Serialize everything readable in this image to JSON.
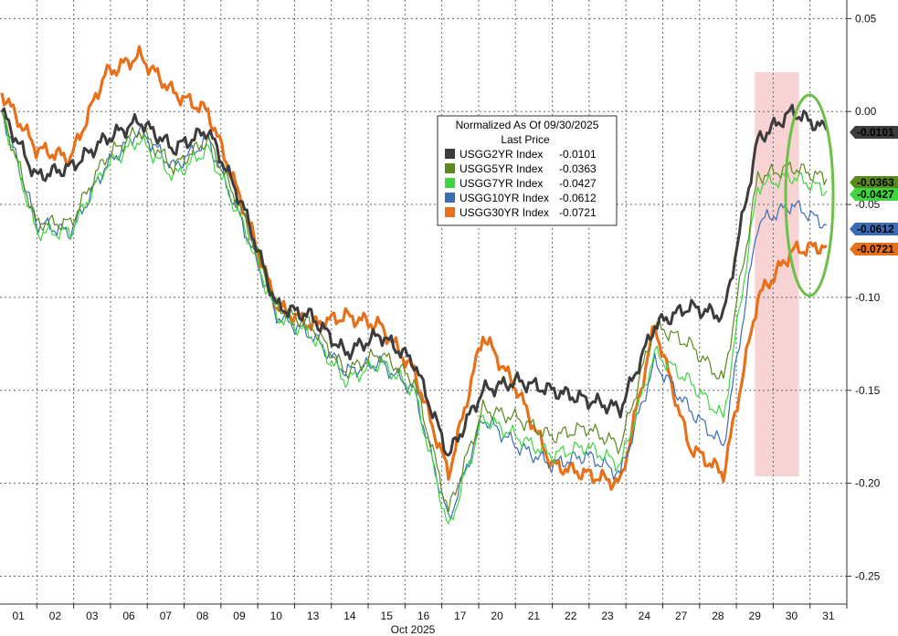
{
  "chart_data": {
    "type": "line",
    "legend": {
      "title_line1": "Normalized As Of 09/30/2025",
      "title_line2": "Last Price",
      "placement": "top-center"
    },
    "xlabel": "Oct 2025",
    "x_ticks": [
      "01",
      "02",
      "03",
      "06",
      "07",
      "08",
      "09",
      "10",
      "13",
      "14",
      "15",
      "16",
      "17",
      "20",
      "21",
      "22",
      "23",
      "24",
      "27",
      "28",
      "29",
      "30",
      "31"
    ],
    "y_ticks": [
      "0.05",
      "0.00",
      "-0.05",
      "-0.10",
      "-0.15",
      "-0.20",
      "-0.25"
    ],
    "ylim": [
      -0.265,
      0.06
    ],
    "grid": true,
    "highlight_band": {
      "from": "29",
      "to": "30",
      "color": "#f4c4c4"
    },
    "annotation": "green ellipse around 31",
    "series": [
      {
        "name": "USGG2YR Index",
        "last": "-0.0101",
        "color": "#3c3c3c",
        "values": [
          0.0,
          -0.035,
          -0.03,
          -0.015,
          -0.005,
          -0.02,
          -0.01,
          -0.05,
          -0.105,
          -0.11,
          -0.13,
          -0.12,
          -0.135,
          -0.185,
          -0.15,
          -0.145,
          -0.15,
          -0.155,
          -0.16,
          -0.115,
          -0.105,
          -0.11,
          -0.015,
          0.0,
          -0.01
        ]
      },
      {
        "name": "USGG5YR Index",
        "last": "-0.0363",
        "color": "#5a8a1e",
        "values": [
          0.0,
          -0.06,
          -0.06,
          -0.025,
          -0.01,
          -0.03,
          -0.015,
          -0.055,
          -0.105,
          -0.115,
          -0.14,
          -0.13,
          -0.145,
          -0.215,
          -0.16,
          -0.165,
          -0.175,
          -0.17,
          -0.18,
          -0.115,
          -0.125,
          -0.145,
          -0.035,
          -0.03,
          -0.0363
        ]
      },
      {
        "name": "USGG7YR Index",
        "last": "-0.0427",
        "color": "#3ed63e",
        "values": [
          0.0,
          -0.065,
          -0.065,
          -0.03,
          -0.015,
          -0.035,
          -0.02,
          -0.06,
          -0.11,
          -0.12,
          -0.145,
          -0.135,
          -0.15,
          -0.225,
          -0.165,
          -0.175,
          -0.185,
          -0.18,
          -0.19,
          -0.13,
          -0.145,
          -0.165,
          -0.04,
          -0.035,
          -0.0427
        ]
      },
      {
        "name": "USGG10YR Index",
        "last": "-0.0612",
        "color": "#3a6db5",
        "values": [
          0.0,
          -0.06,
          -0.065,
          -0.03,
          -0.01,
          -0.03,
          -0.015,
          -0.06,
          -0.11,
          -0.12,
          -0.14,
          -0.135,
          -0.15,
          -0.22,
          -0.165,
          -0.18,
          -0.19,
          -0.185,
          -0.195,
          -0.135,
          -0.16,
          -0.18,
          -0.06,
          -0.05,
          -0.0612
        ]
      },
      {
        "name": "USGG30YR Index",
        "last": "-0.0721",
        "color": "#e8701a",
        "values": [
          0.01,
          -0.02,
          -0.025,
          0.02,
          0.03,
          0.01,
          0.0,
          -0.05,
          -0.105,
          -0.115,
          -0.11,
          -0.115,
          -0.14,
          -0.195,
          -0.12,
          -0.15,
          -0.19,
          -0.195,
          -0.2,
          -0.115,
          -0.18,
          -0.195,
          -0.1,
          -0.075,
          -0.0721
        ]
      }
    ]
  }
}
